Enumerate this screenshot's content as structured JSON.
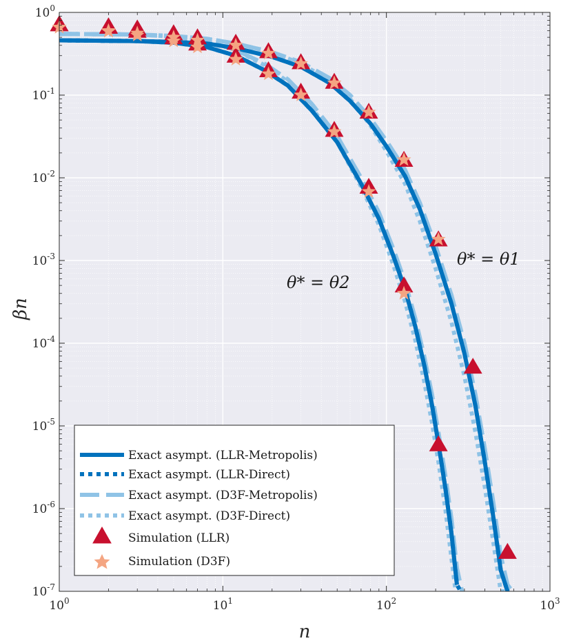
{
  "chart_data": {
    "type": "line",
    "xscale": "log",
    "yscale": "log",
    "xlim": [
      1,
      1000
    ],
    "ylim": [
      1e-07,
      1
    ],
    "xlabel": "n",
    "ylabel": "βn",
    "grid": true,
    "minor_grid": true,
    "legend_position": "bottom-left",
    "x_ticks": [
      {
        "base": "10",
        "exp": "0"
      },
      {
        "base": "10",
        "exp": "1"
      },
      {
        "base": "10",
        "exp": "2"
      },
      {
        "base": "10",
        "exp": "3"
      }
    ],
    "y_ticks": [
      {
        "base": "10",
        "exp": "0"
      },
      {
        "base": "10",
        "exp": "-1"
      },
      {
        "base": "10",
        "exp": "-2"
      },
      {
        "base": "10",
        "exp": "-3"
      },
      {
        "base": "10",
        "exp": "-4"
      },
      {
        "base": "10",
        "exp": "-5"
      },
      {
        "base": "10",
        "exp": "-6"
      },
      {
        "base": "10",
        "exp": "-7"
      }
    ],
    "annotations": [
      {
        "text": "θ* = θ1",
        "x": 420,
        "y": 0.00085
      },
      {
        "text": "θ* = θ2",
        "x": 65,
        "y": 0.00033
      }
    ],
    "series": [
      {
        "name": "Exact asympt. (LLR-Metropolis)",
        "style": "solid",
        "color": "#0072bd",
        "curves": [
          {
            "group": "θ1",
            "x": [
              1,
              3,
              5,
              8,
              12,
              20,
              30,
              45,
              60,
              80,
              100,
              130,
              160,
              200,
              250,
              300,
              350,
              400,
              450,
              500,
              550
            ],
            "y": [
              0.46,
              0.45,
              0.44,
              0.42,
              0.37,
              0.29,
              0.22,
              0.14,
              0.085,
              0.045,
              0.024,
              0.0105,
              0.0042,
              0.0012,
              0.0003,
              7.5e-05,
              1.75e-05,
              3.6e-06,
              8e-07,
              1.8e-07,
              1e-07
            ]
          },
          {
            "group": "θ2",
            "x": [
              1,
              3,
              5,
              8,
              12,
              18,
              25,
              35,
              50,
              70,
              90,
              110,
              130,
              150,
              170,
              190,
              210,
              230,
              250,
              270
            ],
            "y": [
              0.46,
              0.45,
              0.43,
              0.38,
              0.3,
              0.2,
              0.13,
              0.065,
              0.027,
              0.0085,
              0.0032,
              0.00115,
              0.00045,
              0.00016,
              5.5e-05,
              1.8e-05,
              5.5e-06,
              1.7e-06,
              5e-07,
              1.2e-07
            ]
          }
        ]
      },
      {
        "name": "Exact asympt. (LLR-Direct)",
        "style": "dotted-heavy",
        "color": "#0072bd",
        "curves": [
          {
            "group": "θ1",
            "x": [
              1,
              3,
              5,
              8,
              12,
              20,
              30,
              45,
              60,
              80,
              100,
              130,
              160,
              200,
              250,
              300,
              350,
              400,
              450,
              500,
              550,
              565
            ],
            "y": [
              0.46,
              0.45,
              0.44,
              0.42,
              0.37,
              0.29,
              0.22,
              0.14,
              0.085,
              0.045,
              0.024,
              0.0105,
              0.0042,
              0.0012,
              0.0003,
              7.5e-05,
              1.75e-05,
              3.6e-06,
              8e-07,
              1.8e-07,
              1e-07,
              1e-07
            ]
          },
          {
            "group": "θ2",
            "x": [
              1,
              3,
              5,
              8,
              12,
              18,
              25,
              35,
              50,
              70,
              90,
              110,
              130,
              150,
              170,
              190,
              210,
              230,
              250,
              270,
              285
            ],
            "y": [
              0.46,
              0.45,
              0.43,
              0.38,
              0.3,
              0.2,
              0.13,
              0.065,
              0.027,
              0.0085,
              0.0032,
              0.00115,
              0.00045,
              0.00016,
              5.5e-05,
              1.8e-05,
              5.5e-06,
              1.7e-06,
              5e-07,
              1.2e-07,
              1e-07
            ]
          }
        ]
      },
      {
        "name": "Exact asympt. (D3F-Metropolis)",
        "style": "dashed",
        "color": "#8fc3e6",
        "curves": [
          {
            "group": "θ1",
            "x": [
              1,
              3,
              5,
              8,
              12,
              20,
              30,
              45,
              60,
              80,
              100,
              130,
              160,
              200,
              250,
              300,
              350,
              400,
              450,
              500,
              550,
              590
            ],
            "y": [
              0.55,
              0.54,
              0.52,
              0.48,
              0.42,
              0.33,
              0.25,
              0.16,
              0.1,
              0.052,
              0.028,
              0.0125,
              0.005,
              0.0015,
              0.00038,
              0.0001,
              2.4e-05,
              5.2e-06,
              1.2e-06,
              2.7e-07,
              1.2e-07,
              1e-07
            ]
          },
          {
            "group": "θ2",
            "x": [
              1,
              3,
              5,
              8,
              12,
              18,
              25,
              35,
              50,
              70,
              90,
              110,
              130,
              150,
              170,
              190,
              210,
              230,
              250,
              270,
              290
            ],
            "y": [
              0.55,
              0.54,
              0.51,
              0.45,
              0.35,
              0.24,
              0.155,
              0.078,
              0.032,
              0.01,
              0.0038,
              0.0014,
              0.00055,
              0.0002,
              7e-05,
              2.4e-05,
              7.5e-06,
              2.4e-06,
              7.5e-07,
              1.9e-07,
              1e-07
            ]
          }
        ]
      },
      {
        "name": "Exact asympt. (D3F-Direct)",
        "style": "dotted-light",
        "color": "#8fc3e6",
        "curves": [
          {
            "group": "θ1",
            "x": [
              1,
              3,
              5,
              8,
              12,
              20,
              30,
              45,
              60,
              80,
              100,
              130,
              160,
              200,
              250,
              300,
              350,
              400,
              450,
              500,
              540
            ],
            "y": [
              0.55,
              0.54,
              0.52,
              0.48,
              0.42,
              0.33,
              0.24,
              0.15,
              0.09,
              0.043,
              0.021,
              0.0085,
              0.003,
              0.0008,
              0.00018,
              4e-05,
              8.5e-06,
              1.8e-06,
              4e-07,
              1e-07,
              1e-07
            ]
          },
          {
            "group": "θ2",
            "x": [
              1,
              3,
              5,
              8,
              12,
              18,
              25,
              35,
              50,
              70,
              90,
              110,
              130,
              150,
              170,
              190,
              210,
              230,
              250,
              265
            ],
            "y": [
              0.55,
              0.54,
              0.51,
              0.45,
              0.35,
              0.23,
              0.145,
              0.07,
              0.027,
              0.0078,
              0.0027,
              0.0009,
              0.00032,
              0.00011,
              3.5e-05,
              1.1e-05,
              3.3e-06,
              9.5e-07,
              2.5e-07,
              1e-07
            ]
          }
        ]
      },
      {
        "name": "Simulation (LLR)",
        "style": "marker-triangle",
        "color": "#c8102e",
        "points": [
          {
            "group": "θ1",
            "x": [
              1,
              2,
              3,
              5,
              7,
              12,
              19,
              30,
              48,
              78,
              128,
              208,
              338,
              550
            ],
            "y": [
              0.72,
              0.68,
              0.64,
              0.56,
              0.5,
              0.43,
              0.34,
              0.25,
              0.145,
              0.063,
              0.0165,
              0.0018,
              5.2e-05,
              3e-07
            ]
          },
          {
            "group": "θ2",
            "x": [
              1,
              2,
              3,
              5,
              7,
              12,
              19,
              30,
              48,
              78,
              128,
              208
            ],
            "y": [
              0.72,
              0.67,
              0.6,
              0.5,
              0.42,
              0.3,
              0.2,
              0.11,
              0.038,
              0.0078,
              0.0005,
              6e-06
            ]
          }
        ]
      },
      {
        "name": "Simulation (D3F)",
        "style": "marker-star",
        "color": "#f4a582",
        "points": [
          {
            "group": "θ1",
            "x": [
              1,
              2,
              3,
              5,
              7,
              12,
              19,
              30,
              48,
              78,
              128,
              208
            ],
            "y": [
              0.66,
              0.6,
              0.56,
              0.5,
              0.46,
              0.4,
              0.32,
              0.24,
              0.14,
              0.062,
              0.0165,
              0.0018
            ]
          },
          {
            "group": "θ2",
            "x": [
              1,
              2,
              3,
              5,
              7,
              12,
              19,
              30,
              48,
              78,
              128
            ],
            "y": [
              0.66,
              0.59,
              0.53,
              0.45,
              0.38,
              0.27,
              0.18,
              0.1,
              0.036,
              0.0068,
              0.0004
            ]
          }
        ]
      }
    ]
  }
}
